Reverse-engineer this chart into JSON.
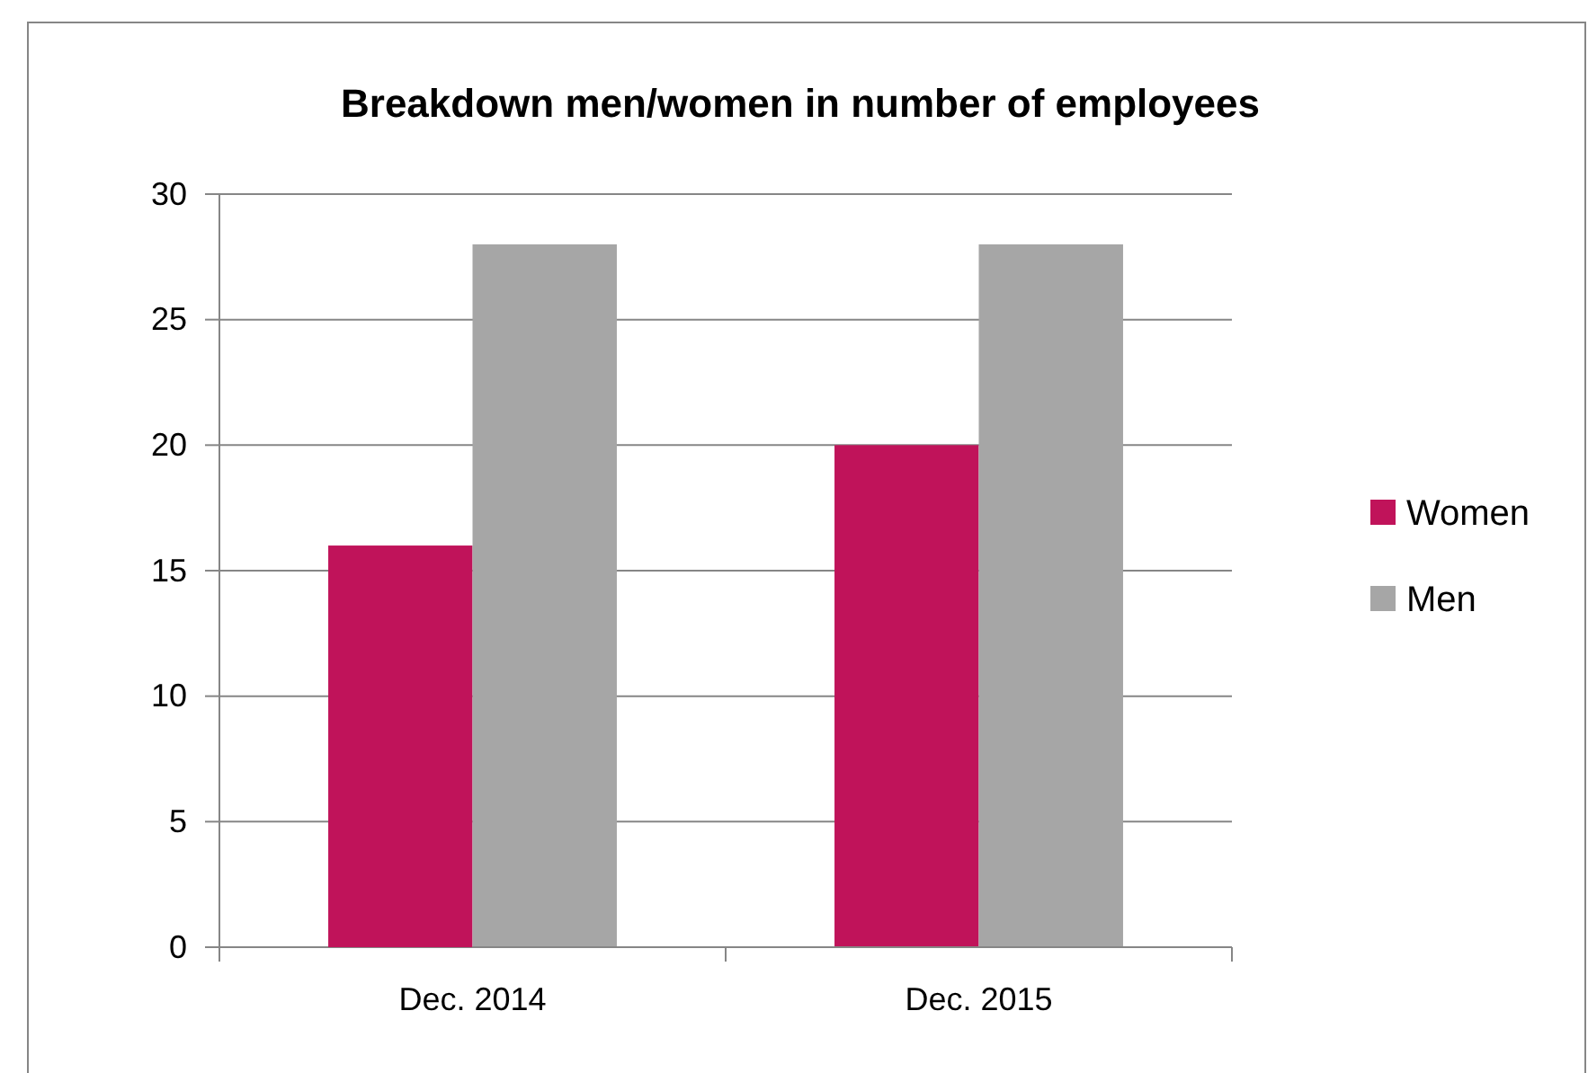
{
  "chart_data": {
    "type": "bar",
    "title": "Breakdown men/women in number of employees",
    "categories": [
      "Dec. 2014",
      "Dec. 2015"
    ],
    "series": [
      {
        "name": "Women",
        "color": "#c0135a",
        "values": [
          16,
          20
        ]
      },
      {
        "name": "Men",
        "color": "#a6a6a6",
        "values": [
          28,
          28
        ]
      }
    ],
    "ylim": [
      0,
      30
    ],
    "yticks": [
      0,
      5,
      10,
      15,
      20,
      25,
      30
    ],
    "grid": "y",
    "legend": "right"
  }
}
